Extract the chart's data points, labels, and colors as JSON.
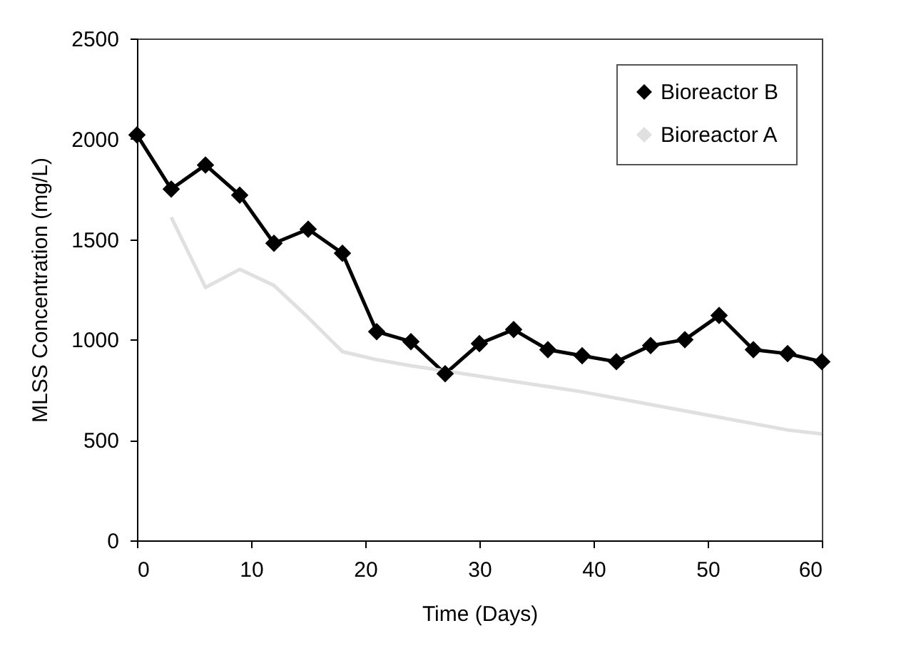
{
  "chart_data": {
    "type": "line",
    "xlabel": "Time (Days)",
    "ylabel": "MLSS Concentration (mg/L)",
    "xlim": [
      0,
      60
    ],
    "xticks": [
      0,
      10,
      20,
      30,
      40,
      50,
      60
    ],
    "ylim": [
      0,
      2500
    ],
    "yticks": [
      0,
      500,
      1000,
      1500,
      2000,
      2500
    ],
    "grid": false,
    "legend": "top right",
    "line_style": "solid",
    "series": [
      {
        "name": "Bioreactor B",
        "color": "#000000",
        "marker": "diamond",
        "x": [
          0,
          3,
          6,
          9,
          12,
          15,
          18,
          21,
          24,
          27,
          30,
          33,
          36,
          39,
          42,
          45,
          48,
          51,
          54,
          57,
          60
        ],
        "values": [
          2020,
          1750,
          1870,
          1720,
          1480,
          1550,
          1430,
          1040,
          990,
          830,
          980,
          1050,
          950,
          920,
          890,
          970,
          1000,
          1120,
          950,
          930,
          890
        ]
      },
      {
        "name": "Bioreactor A",
        "color": "#e0e0e0",
        "marker": "none",
        "x": [
          3,
          6,
          9,
          12,
          15,
          18,
          21,
          24,
          39,
          57,
          60
        ],
        "values": [
          1610,
          1260,
          1350,
          1270,
          1110,
          940,
          900,
          870,
          740,
          550,
          530
        ]
      }
    ]
  }
}
